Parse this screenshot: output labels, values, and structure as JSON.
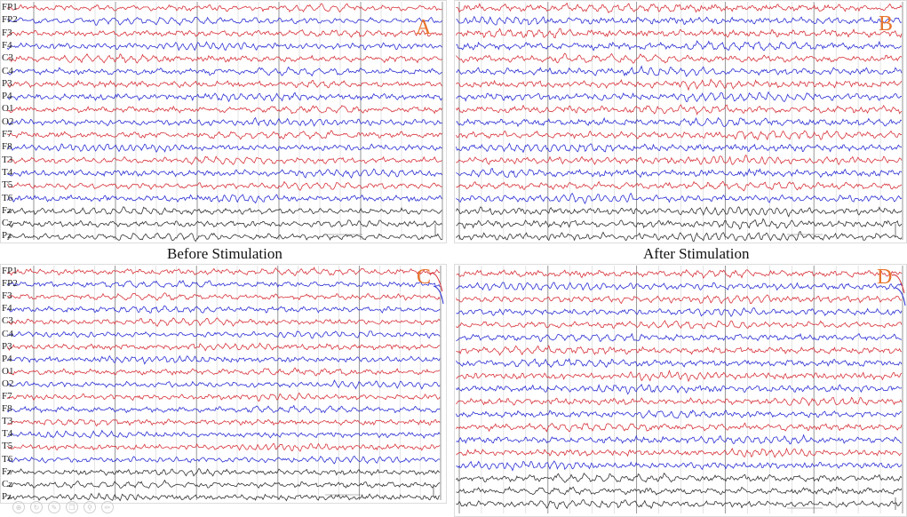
{
  "figure": {
    "captions": {
      "before": "Before Stimulation",
      "after": "After Stimulation"
    },
    "channels": [
      "FP1",
      "FP2",
      "F3",
      "F4",
      "C3",
      "C4",
      "P3",
      "P4",
      "O1",
      "O2",
      "F7",
      "F8",
      "T3",
      "T4",
      "T5",
      "T6",
      "Fz",
      "Cz",
      "Pz"
    ],
    "trace_colors": [
      "red",
      "blue",
      "red",
      "blue",
      "red",
      "blue",
      "red",
      "blue",
      "red",
      "blue",
      "red",
      "blue",
      "red",
      "blue",
      "red",
      "blue",
      "black",
      "black",
      "black"
    ],
    "colors": {
      "red": "#d8333a",
      "blue": "#2b2fd4",
      "black": "#333333",
      "panel_label": "#e8742c",
      "grid": "#c9c9c9",
      "grid_major": "#8a8a8a"
    },
    "panels": [
      {
        "id": "A",
        "label": "A",
        "channel_labels_visible": true
      },
      {
        "id": "B",
        "label": "B",
        "channel_labels_visible": false
      },
      {
        "id": "C",
        "label": "C",
        "channel_labels_visible": true
      },
      {
        "id": "D",
        "label": "D",
        "channel_labels_visible": false
      }
    ],
    "toolbar_icons": [
      "zoom-icon",
      "rotate-icon",
      "pen-icon",
      "copy-icon",
      "search-icon",
      "edit-icon"
    ]
  }
}
